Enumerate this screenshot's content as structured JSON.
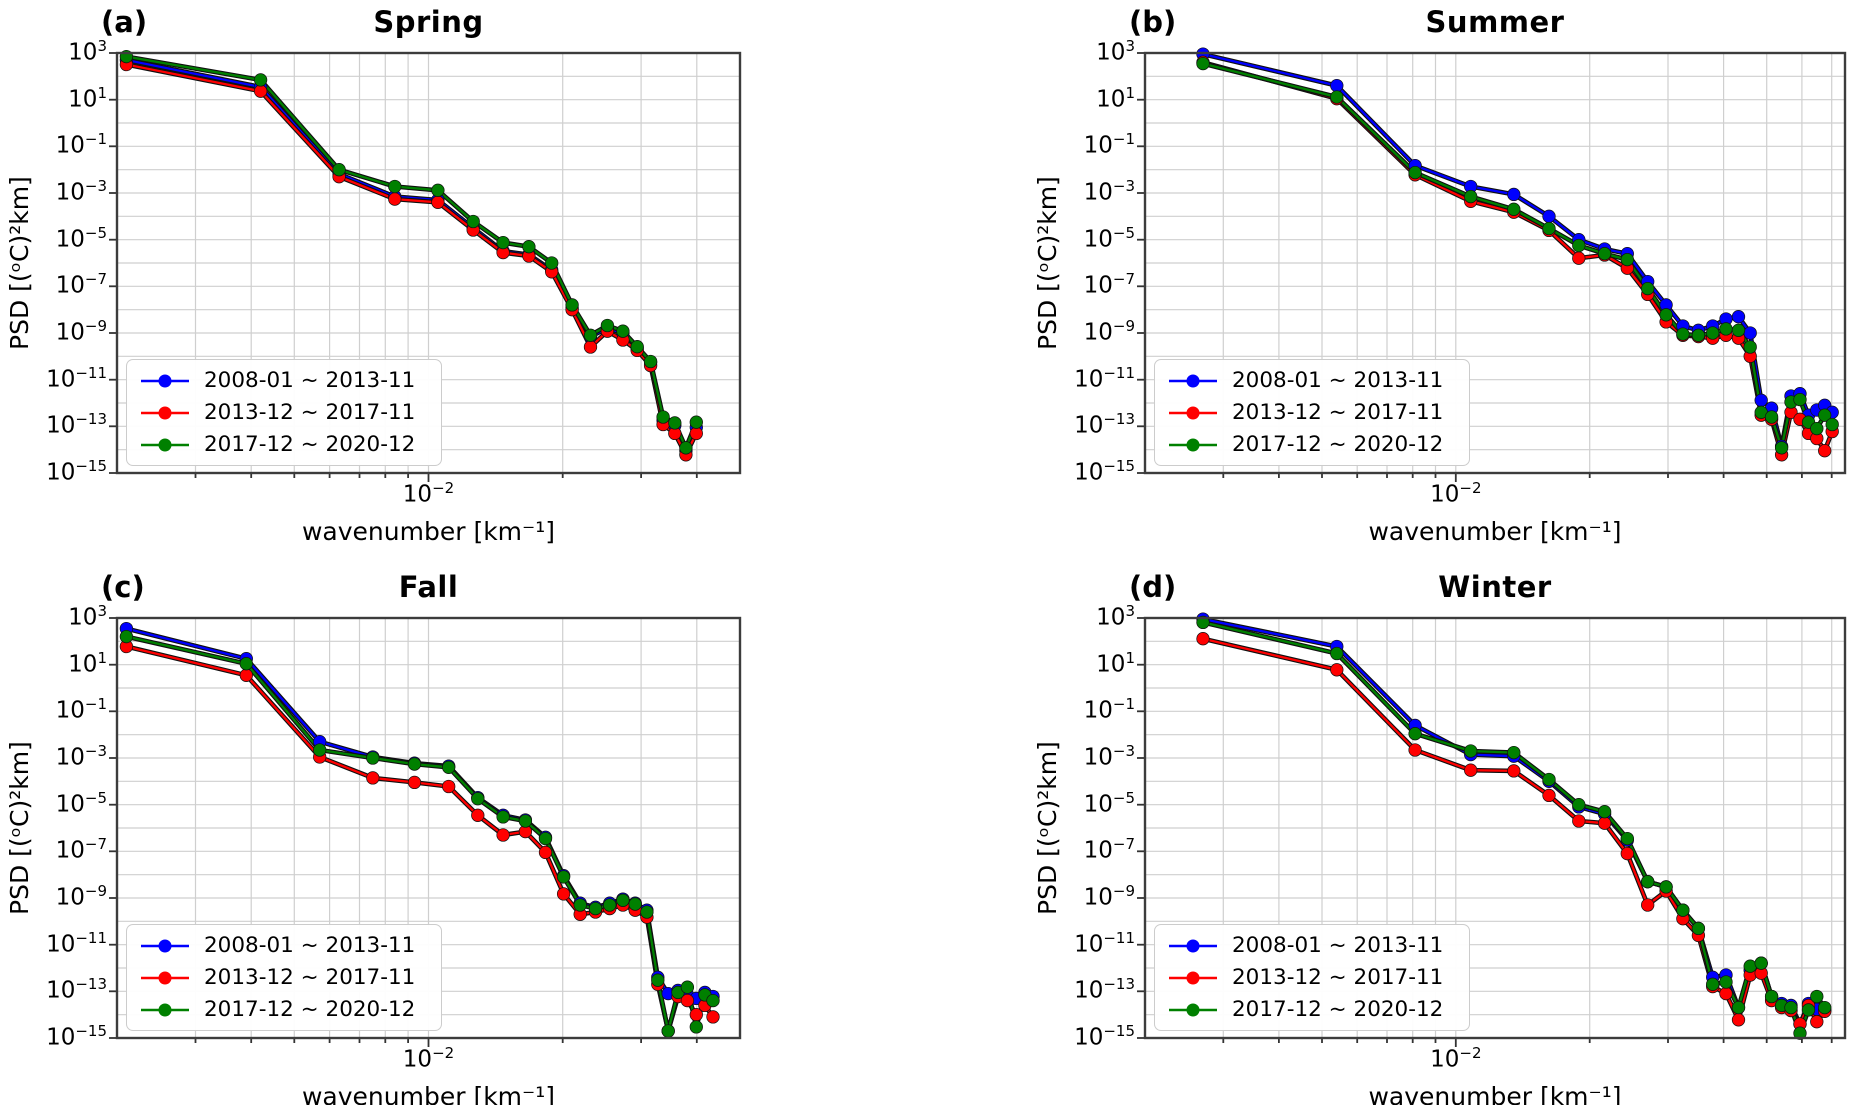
{
  "figure": {
    "background": "#ffffff"
  },
  "axes": {
    "xlabel": "wavenumber [km⁻¹]",
    "ylabel": "PSD [(ᵒC)²km]",
    "xtick_label": "10⁻²",
    "xtick_exponent": -2,
    "ytick_labels": [
      "10³",
      "10¹",
      "10⁻¹",
      "10⁻³",
      "10⁻⁵",
      "10⁻⁷",
      "10⁻⁹",
      "10⁻¹¹",
      "10⁻¹³",
      "10⁻¹⁵"
    ],
    "ytick_exponents": [
      3,
      1,
      -1,
      -3,
      -5,
      -7,
      -9,
      -11,
      -13,
      -15
    ],
    "grid": true,
    "legend_position": "lower left"
  },
  "legend": {
    "entries": [
      {
        "label": "2008-01 ~ 2013-11",
        "color": "#0000ff"
      },
      {
        "label": "2013-12 ~ 2017-11",
        "color": "#ff0000"
      },
      {
        "label": "2017-12 ~ 2020-12",
        "color": "#008000"
      }
    ]
  },
  "chart_data": [
    {
      "type": "line",
      "panel": "(a)",
      "title": "Spring",
      "xlabel": "wavenumber [km⁻¹]",
      "ylabel": "PSD [(ᵒC)²km]",
      "xlim": [
        0.002,
        0.05
      ],
      "ylim": [
        1e-15,
        1000
      ],
      "x": [
        0.0021,
        0.0042,
        0.0063,
        0.0084,
        0.0105,
        0.0126,
        0.0147,
        0.0168,
        0.0189,
        0.021,
        0.0231,
        0.0252,
        0.0273,
        0.0294,
        0.0315,
        0.0336,
        0.0357,
        0.0378,
        0.0399
      ],
      "series": [
        {
          "name": "2008-01 ~ 2013-11",
          "color": "#0000ff",
          "values": [
            500,
            35,
            0.0065,
            0.0007,
            0.0005,
            3.2e-05,
            3.2e-06,
            2.3e-06,
            5e-07,
            1.2e-08,
            7e-10,
            1.6e-09,
            1e-09,
            2.2e-10,
            5.5e-11,
            1.8e-13,
            1.1e-13,
            9e-15,
            9e-14
          ]
        },
        {
          "name": "2013-12 ~ 2017-11",
          "color": "#ff0000",
          "values": [
            320,
            23,
            0.005,
            0.00055,
            0.0004,
            2.6e-05,
            2.8e-06,
            2e-06,
            4.2e-07,
            1e-08,
            2.5e-10,
            1.2e-09,
            5e-10,
            1.8e-10,
            4e-11,
            1.2e-13,
            5e-14,
            6e-15,
            5e-14
          ]
        },
        {
          "name": "2017-12 ~ 2020-12",
          "color": "#008000",
          "values": [
            700,
            70,
            0.01,
            0.0019,
            0.0013,
            6e-05,
            7.5e-06,
            5e-06,
            1e-06,
            1.6e-08,
            8e-10,
            2.1e-09,
            1.2e-09,
            2.6e-10,
            6e-11,
            2.5e-13,
            1.4e-13,
            1.2e-14,
            1.5e-13
          ]
        }
      ]
    },
    {
      "type": "line",
      "panel": "(b)",
      "title": "Summer",
      "xlabel": "wavenumber [km⁻¹]",
      "ylabel": "PSD [(ᵒC)²km]",
      "xlim": [
        0.002,
        0.075
      ],
      "ylim": [
        1e-15,
        1000
      ],
      "x": [
        0.0027,
        0.0054,
        0.0081,
        0.0108,
        0.0135,
        0.0162,
        0.0189,
        0.0216,
        0.0243,
        0.027,
        0.0297,
        0.0324,
        0.0351,
        0.0378,
        0.0405,
        0.0432,
        0.0459,
        0.0486,
        0.0513,
        0.054,
        0.0567,
        0.0594,
        0.0621,
        0.0648,
        0.0675,
        0.0702
      ],
      "series": [
        {
          "name": "2008-01 ~ 2013-11",
          "color": "#0000ff",
          "values": [
            900,
            40,
            0.015,
            0.0019,
            0.00087,
            0.0001,
            1e-05,
            4e-06,
            2.5e-06,
            1.6e-07,
            1.6e-08,
            2e-09,
            1.3e-09,
            2e-09,
            4e-09,
            5e-09,
            1e-09,
            1.3e-12,
            6e-13,
            1.4e-14,
            2e-12,
            2.5e-12,
            3e-13,
            5e-13,
            8e-13,
            4e-13
          ]
        },
        {
          "name": "2013-12 ~ 2017-11",
          "color": "#ff0000",
          "values": [
            400,
            11,
            0.006,
            0.00044,
            0.00015,
            2.5e-05,
            1.6e-06,
            2.2e-06,
            6e-07,
            4.5e-08,
            3e-09,
            8e-10,
            7e-10,
            6e-10,
            8e-10,
            6e-10,
            1e-10,
            3e-13,
            2e-13,
            6e-15,
            4e-13,
            2e-13,
            5e-14,
            3e-14,
            9e-15,
            6e-14
          ]
        },
        {
          "name": "2017-12 ~ 2020-12",
          "color": "#008000",
          "values": [
            350,
            13,
            0.0075,
            0.0007,
            0.0002,
            3e-05,
            5.6e-06,
            2.5e-06,
            1.4e-06,
            8e-08,
            6e-09,
            9e-10,
            8e-10,
            1e-09,
            1.5e-09,
            1.3e-09,
            2.5e-10,
            4e-13,
            2.5e-13,
            1.2e-14,
            1.1e-12,
            1.4e-12,
            1.5e-13,
            8e-14,
            3e-13,
            1.2e-13
          ]
        }
      ]
    },
    {
      "type": "line",
      "panel": "(c)",
      "title": "Fall",
      "xlabel": "wavenumber [km⁻¹]",
      "ylabel": "PSD [(ᵒC)²km]",
      "xlim": [
        0.002,
        0.05
      ],
      "ylim": [
        1e-15,
        1000
      ],
      "x": [
        0.0021,
        0.0039,
        0.0057,
        0.0075,
        0.0093,
        0.0111,
        0.0129,
        0.0147,
        0.0165,
        0.0183,
        0.0201,
        0.0219,
        0.0237,
        0.0255,
        0.0273,
        0.0291,
        0.0309,
        0.0327,
        0.0345,
        0.0363,
        0.0381,
        0.0399,
        0.0417,
        0.0435
      ],
      "series": [
        {
          "name": "2008-01 ~ 2013-11",
          "color": "#0000ff",
          "values": [
            350,
            18,
            0.005,
            0.0011,
            0.0006,
            0.00045,
            2e-05,
            3.5e-06,
            2.2e-06,
            4e-07,
            9e-09,
            6e-10,
            4e-10,
            6e-10,
            9e-10,
            6e-10,
            3e-10,
            4e-13,
            8e-14,
            1.1e-13,
            7e-14,
            5e-14,
            9e-14,
            6e-14
          ]
        },
        {
          "name": "2013-12 ~ 2017-11",
          "color": "#ff0000",
          "values": [
            60,
            3.5,
            0.0011,
            0.00014,
            9e-05,
            6e-05,
            3.5e-06,
            5e-07,
            7e-07,
            9e-08,
            1.5e-09,
            2e-10,
            2.5e-10,
            3.5e-10,
            5e-10,
            3e-10,
            1.5e-10,
            2e-13,
            2e-15,
            6e-14,
            4e-14,
            1e-14,
            2.5e-14,
            8e-15
          ]
        },
        {
          "name": "2017-12 ~ 2020-12",
          "color": "#008000",
          "values": [
            160,
            11,
            0.0022,
            0.001,
            0.00055,
            0.0004,
            1.8e-05,
            3e-06,
            2e-06,
            3.5e-07,
            8e-09,
            5e-10,
            3.5e-10,
            5e-10,
            8e-10,
            5.5e-10,
            2.5e-10,
            3e-13,
            2e-15,
            9e-14,
            1.5e-13,
            3e-15,
            7e-14,
            4e-14
          ]
        }
      ]
    },
    {
      "type": "line",
      "panel": "(d)",
      "title": "Winter",
      "xlabel": "wavenumber [km⁻¹]",
      "ylabel": "PSD [(ᵒC)²km]",
      "xlim": [
        0.002,
        0.075
      ],
      "ylim": [
        1e-15,
        1000
      ],
      "x": [
        0.0027,
        0.0054,
        0.0081,
        0.0108,
        0.0135,
        0.0162,
        0.0189,
        0.0216,
        0.0243,
        0.027,
        0.0297,
        0.0324,
        0.0351,
        0.0378,
        0.0405,
        0.0432,
        0.0459,
        0.0486,
        0.0513,
        0.054,
        0.0567,
        0.0594,
        0.0621,
        0.0648,
        0.0675
      ],
      "series": [
        {
          "name": "2008-01 ~ 2013-11",
          "color": "#0000ff",
          "values": [
            900,
            60,
            0.025,
            0.0014,
            0.0012,
            0.0001,
            8e-06,
            4e-06,
            3e-07,
            5e-09,
            3e-09,
            3e-10,
            5e-11,
            4e-13,
            5e-13,
            2e-14,
            8e-13,
            1.6e-12,
            6e-14,
            3e-14,
            2.5e-14,
            4e-15,
            3e-14,
            1.7e-14,
            1.6e-14
          ]
        },
        {
          "name": "2013-12 ~ 2017-11",
          "color": "#ff0000",
          "values": [
            130,
            6,
            0.0022,
            0.0003,
            0.00028,
            2.5e-05,
            2e-06,
            1.6e-06,
            8e-08,
            5e-10,
            2e-09,
            1.3e-10,
            2.5e-11,
            1.6e-13,
            8e-14,
            6e-15,
            5e-13,
            6e-13,
            4e-14,
            2e-14,
            1.5e-14,
            4e-15,
            2.5e-14,
            5e-15,
            1.4e-14
          ]
        },
        {
          "name": "2017-12 ~ 2020-12",
          "color": "#008000",
          "values": [
            650,
            30,
            0.011,
            0.002,
            0.0017,
            0.00012,
            1e-05,
            5e-06,
            3.5e-07,
            5e-09,
            3e-09,
            3e-10,
            5e-11,
            2e-13,
            2.5e-13,
            2e-14,
            1.2e-12,
            1.6e-12,
            6e-14,
            2.5e-14,
            2e-14,
            1.6e-15,
            1.6e-14,
            6e-14,
            2e-14
          ]
        }
      ]
    }
  ]
}
